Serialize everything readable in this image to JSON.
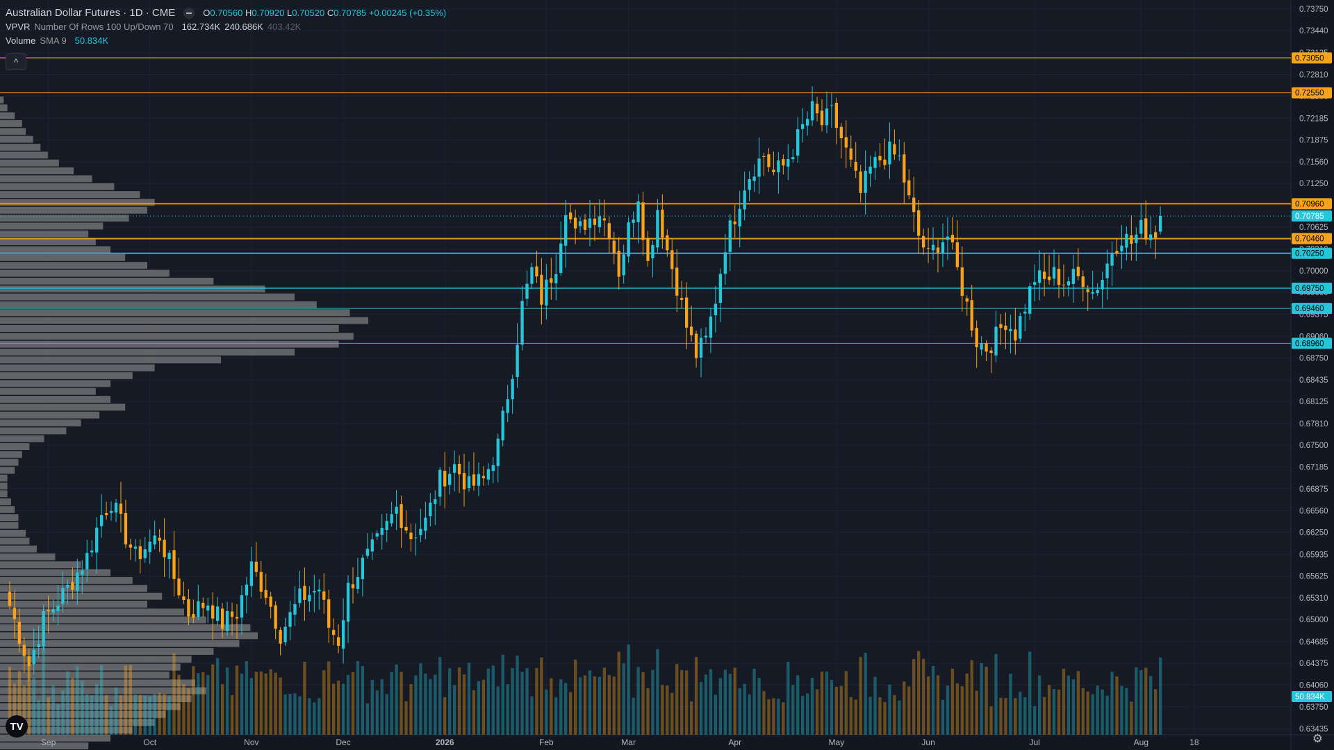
{
  "legend": {
    "title": "Australian Dollar Futures · 1D · CME",
    "o_label": "O",
    "o": "0.70560",
    "h_label": "H",
    "h": "0.70920",
    "l_label": "L",
    "l": "0.70520",
    "c_label": "C",
    "c": "0.70785",
    "chg": "+0.00245 (+0.35%)",
    "vpvr_name": "VPVR",
    "vpvr_params": "Number Of Rows 100 Up/Down 70",
    "vpvr_up": "162.734K",
    "vpvr_down": "240.686K",
    "vpvr_total": "403.42K",
    "vol_name": "Volume",
    "vol_params": "SMA 9",
    "vol_sma": "50.834K"
  },
  "collapse_icon": "chevron-up-icon",
  "logo_text": "TV",
  "settings_icon": "gear-icon",
  "colors": {
    "background": "#161a25",
    "up": "#26c6da",
    "down": "#f7a21b",
    "vpvr": "#808080",
    "axis_text": "#b2b5be",
    "grid": "#1f2330"
  },
  "chart_data": {
    "type": "candlestick",
    "title": "Australian Dollar Futures · 1D · CME",
    "y_tick_labels": [
      "0.73750",
      "0.73440",
      "0.73125",
      "0.72810",
      "0.72500",
      "0.72185",
      "0.71875",
      "0.71560",
      "0.71250",
      "0.70940",
      "0.70625",
      "0.70310",
      "0.70000",
      "0.69690",
      "0.69375",
      "0.69060",
      "0.68750",
      "0.68435",
      "0.68125",
      "0.67810",
      "0.67500",
      "0.67185",
      "0.66875",
      "0.66560",
      "0.66250",
      "0.65935",
      "0.65625",
      "0.65310",
      "0.65000",
      "0.64685",
      "0.64375",
      "0.64060",
      "0.63750",
      "0.63435"
    ],
    "y_range": [
      0.6335,
      0.7388
    ],
    "x_tick_labels": [
      {
        "label": "Sep",
        "day": 8
      },
      {
        "label": "Oct",
        "day": 29
      },
      {
        "label": "Nov",
        "day": 50
      },
      {
        "label": "Dec",
        "day": 69
      },
      {
        "label": "2026",
        "day": 90,
        "bold": true
      },
      {
        "label": "Feb",
        "day": 111
      },
      {
        "label": "Mar",
        "day": 128
      },
      {
        "label": "Apr",
        "day": 150
      },
      {
        "label": "May",
        "day": 171
      },
      {
        "label": "Jun",
        "day": 190
      },
      {
        "label": "Jul",
        "day": 212
      },
      {
        "label": "Aug",
        "day": 234
      },
      {
        "label": "18",
        "day": 245
      }
    ],
    "x_range_days": [
      -2,
      265
    ],
    "price_labels": [
      {
        "price": 0.7305,
        "text": "0.73050",
        "kind": "orange"
      },
      {
        "price": 0.7255,
        "text": "0.72550",
        "kind": "orange"
      },
      {
        "price": 0.7096,
        "text": "0.70960",
        "kind": "orange"
      },
      {
        "price": 0.70785,
        "text": "0.70785",
        "kind": "last"
      },
      {
        "price": 0.7046,
        "text": "0.70460",
        "kind": "orange"
      },
      {
        "price": 0.7025,
        "text": "0.70250",
        "kind": "cyan"
      },
      {
        "price": 0.6975,
        "text": "0.69750",
        "kind": "cyan"
      },
      {
        "price": 0.6946,
        "text": "0.69460",
        "kind": "cyan"
      },
      {
        "price": 0.6896,
        "text": "0.68960",
        "kind": "cyan"
      }
    ],
    "horizontal_lines": [
      {
        "price": 0.7305,
        "color": "#f7a21b",
        "width": 1.5
      },
      {
        "price": 0.7255,
        "color": "#f7a21b",
        "width": 1
      },
      {
        "price": 0.7096,
        "color": "#f7a21b",
        "width": 2
      },
      {
        "price": 0.7046,
        "color": "#f7a21b",
        "width": 2
      },
      {
        "price": 0.7025,
        "color": "#26c6da",
        "width": 2
      },
      {
        "price": 0.6975,
        "color": "#26c6da",
        "width": 1.5
      },
      {
        "price": 0.6946,
        "color": "#26c6da",
        "width": 1
      },
      {
        "price": 0.6896,
        "color": "#26c6da",
        "width": 1
      }
    ],
    "vol_sma_label": "50.834K",
    "waypoints": [
      [
        0,
        0.652
      ],
      [
        4,
        0.6435
      ],
      [
        7,
        0.65
      ],
      [
        12,
        0.6545
      ],
      [
        16,
        0.659
      ],
      [
        19,
        0.665
      ],
      [
        21,
        0.667
      ],
      [
        24,
        0.662
      ],
      [
        26,
        0.659
      ],
      [
        29,
        0.661
      ],
      [
        31,
        0.662
      ],
      [
        34,
        0.656
      ],
      [
        37,
        0.651
      ],
      [
        41,
        0.6525
      ],
      [
        44,
        0.6495
      ],
      [
        47,
        0.651
      ],
      [
        50,
        0.6575
      ],
      [
        53,
        0.654
      ],
      [
        56,
        0.648
      ],
      [
        60,
        0.653
      ],
      [
        64,
        0.6545
      ],
      [
        66,
        0.649
      ],
      [
        68,
        0.647
      ],
      [
        70,
        0.6545
      ],
      [
        73,
        0.658
      ],
      [
        77,
        0.662
      ],
      [
        80,
        0.666
      ],
      [
        83,
        0.662
      ],
      [
        86,
        0.664
      ],
      [
        89,
        0.67
      ],
      [
        92,
        0.672
      ],
      [
        95,
        0.669
      ],
      [
        98,
        0.67
      ],
      [
        101,
        0.675
      ],
      [
        104,
        0.686
      ],
      [
        106,
        0.695
      ],
      [
        108,
        0.7
      ],
      [
        110,
        0.696
      ],
      [
        113,
        0.701
      ],
      [
        115,
        0.7095
      ],
      [
        117,
        0.705
      ],
      [
        119,
        0.707
      ],
      [
        122,
        0.7085
      ],
      [
        124,
        0.706
      ],
      [
        126,
        0.7
      ],
      [
        128,
        0.706
      ],
      [
        130,
        0.711
      ],
      [
        132,
        0.701
      ],
      [
        134,
        0.709
      ],
      [
        136,
        0.703
      ],
      [
        138,
        0.698
      ],
      [
        140,
        0.692
      ],
      [
        142,
        0.688
      ],
      [
        144,
        0.69
      ],
      [
        146,
        0.696
      ],
      [
        148,
        0.704
      ],
      [
        150,
        0.708
      ],
      [
        152,
        0.7125
      ],
      [
        154,
        0.715
      ],
      [
        156,
        0.7165
      ],
      [
        158,
        0.714
      ],
      [
        160,
        0.715
      ],
      [
        162,
        0.7175
      ],
      [
        164,
        0.7205
      ],
      [
        166,
        0.723
      ],
      [
        168,
        0.721
      ],
      [
        170,
        0.7225
      ],
      [
        172,
        0.719
      ],
      [
        174,
        0.715
      ],
      [
        176,
        0.711
      ],
      [
        178,
        0.7145
      ],
      [
        180,
        0.716
      ],
      [
        182,
        0.717
      ],
      [
        184,
        0.716
      ],
      [
        186,
        0.71
      ],
      [
        188,
        0.705
      ],
      [
        190,
        0.702
      ],
      [
        192,
        0.704
      ],
      [
        194,
        0.705
      ],
      [
        196,
        0.7
      ],
      [
        198,
        0.695
      ],
      [
        200,
        0.69
      ],
      [
        202,
        0.689
      ],
      [
        204,
        0.6905
      ],
      [
        206,
        0.693
      ],
      [
        208,
        0.691
      ],
      [
        210,
        0.695
      ],
      [
        212,
        0.699
      ],
      [
        214,
        0.6985
      ],
      [
        216,
        0.6995
      ],
      [
        218,
        0.6985
      ],
      [
        220,
        0.699
      ],
      [
        222,
        0.699
      ],
      [
        224,
        0.697
      ],
      [
        226,
        0.699
      ],
      [
        228,
        0.703
      ],
      [
        230,
        0.705
      ],
      [
        232,
        0.704
      ],
      [
        234,
        0.706
      ],
      [
        236,
        0.7055
      ],
      [
        237,
        0.7056
      ]
    ],
    "last_candle": {
      "day": 238,
      "open": 0.7056,
      "high": 0.7092,
      "low": 0.7052,
      "close": 0.70785
    },
    "vpvr_profile_widths": [
      0.0,
      0.0,
      0.0,
      0.01,
      0.02,
      0.04,
      0.06,
      0.07,
      0.09,
      0.11,
      0.13,
      0.16,
      0.2,
      0.25,
      0.31,
      0.38,
      0.42,
      0.4,
      0.35,
      0.28,
      0.24,
      0.26,
      0.3,
      0.34,
      0.4,
      0.46,
      0.58,
      0.72,
      0.8,
      0.86,
      0.95,
      1.0,
      0.92,
      0.96,
      0.92,
      0.8,
      0.6,
      0.42,
      0.36,
      0.3,
      0.26,
      0.3,
      0.34,
      0.27,
      0.22,
      0.18,
      0.12,
      0.08,
      0.06,
      0.05,
      0.04,
      0.02,
      0.02,
      0.02,
      0.03,
      0.04,
      0.05,
      0.05,
      0.07,
      0.08,
      0.1,
      0.15,
      0.22,
      0.3,
      0.36,
      0.4,
      0.44,
      0.4,
      0.5,
      0.56,
      0.68,
      0.7,
      0.65,
      0.58,
      0.52,
      0.49,
      0.46,
      0.53,
      0.56,
      0.52,
      0.49,
      0.45,
      0.42,
      0.36,
      0.3,
      0.24,
      0.2,
      0.14,
      0.1,
      0.06
    ]
  }
}
